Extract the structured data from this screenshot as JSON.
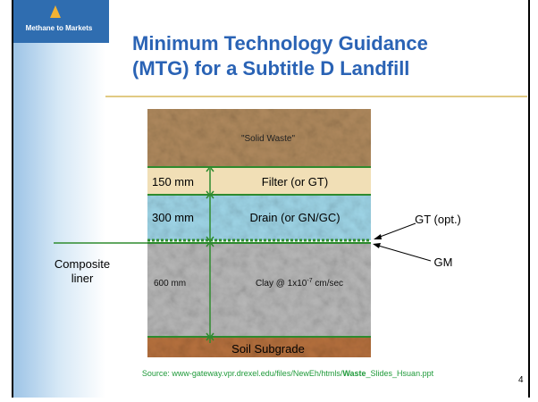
{
  "sidebar": {
    "logo_text": "Methane to Markets"
  },
  "title": {
    "lines": [
      "Minimum Technology Guidance",
      "(MTG) for a Subtitle D Landfill"
    ]
  },
  "layers": [
    {
      "label": "\"Solid Waste\""
    },
    {
      "label": "Filter (or GT)",
      "thickness": "150 mm"
    },
    {
      "label": "Drain (or GN/GC)",
      "thickness": "300 mm"
    },
    {
      "label_parts": [
        "Clay @ 1x10",
        "-7",
        " cm/sec"
      ],
      "thickness": "600 mm"
    },
    {
      "label": "Soil Subgrade"
    }
  ],
  "annotations": {
    "gt": "GT (opt.)",
    "gm": "GM",
    "composite_liner": [
      "Composite",
      "liner"
    ]
  },
  "source": {
    "prefix": "Source: www-gateway.vpr.drexel.edu/files/NewEh/htmls/",
    "bold": "Waste",
    "suffix": "_Slides_Hsuan.ppt"
  },
  "page_number": "4"
}
